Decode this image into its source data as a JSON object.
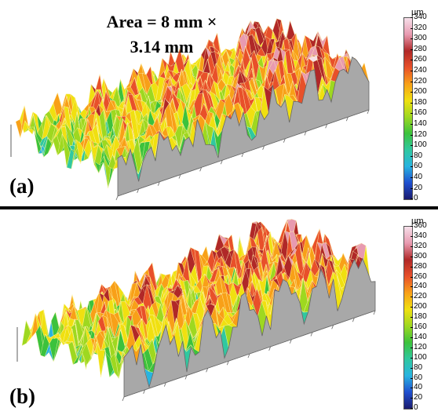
{
  "panel_a": {
    "label": "(a)",
    "area_line1": "Area = 8 mm ×",
    "area_line2": "3.14 mm",
    "colorbar": {
      "unit": "µm",
      "ticks": [
        "340",
        "320",
        "300",
        "280",
        "260",
        "240",
        "220",
        "200",
        "180",
        "160",
        "140",
        "120",
        "100",
        "80",
        "60",
        "40",
        "20",
        "0"
      ]
    }
  },
  "panel_b": {
    "label": "(b)",
    "colorbar": {
      "unit": "µm",
      "ticks": [
        "360",
        "340",
        "320",
        "300",
        "280",
        "260",
        "240",
        "220",
        "200",
        "180",
        "160",
        "140",
        "120",
        "100",
        "80",
        "60",
        "40",
        "20",
        "0"
      ]
    }
  },
  "colormap": [
    "#1a1a6e",
    "#1f4fd0",
    "#28b4e0",
    "#30c8a0",
    "#3cc23c",
    "#9ed820",
    "#f0e010",
    "#f8a018",
    "#e8502a",
    "#b02828",
    "#e89ab0",
    "#f6e0ea"
  ]
}
